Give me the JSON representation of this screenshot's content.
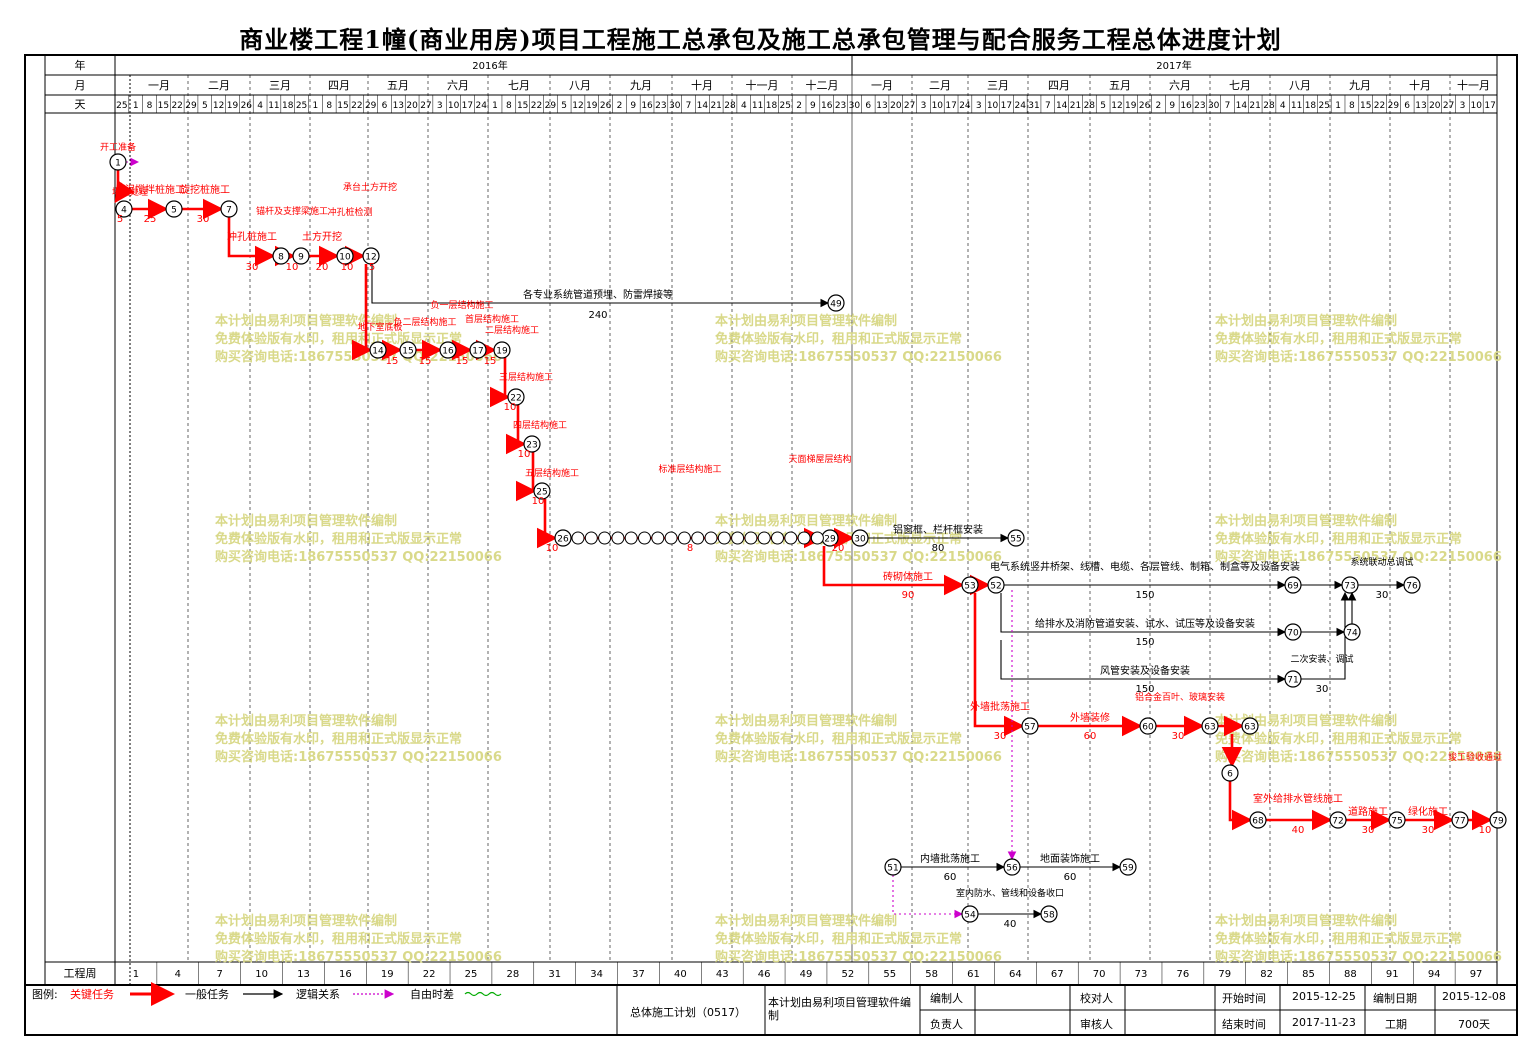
{
  "title": "商业楼工程1幢(商业用房)项目工程施工总承包及施工总承包管理与配合服务工程总体进度计划",
  "header": {
    "row_labels": {
      "year": "年",
      "month": "月",
      "day": "天"
    },
    "years": [
      {
        "label": "2016年"
      },
      {
        "label": "2017年"
      }
    ],
    "months": [
      "一月",
      "二月",
      "三月",
      "四月",
      "五月",
      "六月",
      "七月",
      "八月",
      "九月",
      "十月",
      "十一月",
      "十二月",
      "一月",
      "二月",
      "三月",
      "四月",
      "五月",
      "六月",
      "七月",
      "八月",
      "九月",
      "十月",
      "十一月"
    ],
    "day_ticks": [
      "25",
      "1",
      "8",
      "15",
      "22",
      "29",
      "5",
      "12",
      "19",
      "26",
      "4",
      "11",
      "18",
      "25",
      "1",
      "8",
      "15",
      "22",
      "29",
      "6",
      "13",
      "20",
      "27",
      "3",
      "10",
      "17",
      "24",
      "1",
      "8",
      "15",
      "22",
      "29",
      "5",
      "12",
      "19",
      "26",
      "2",
      "9",
      "16",
      "23",
      "30",
      "7",
      "14",
      "21",
      "28",
      "4",
      "11",
      "18",
      "25",
      "2",
      "9",
      "16",
      "23",
      "30",
      "6",
      "13",
      "20",
      "27",
      "3",
      "10",
      "17",
      "24",
      "3",
      "10",
      "17",
      "24",
      "31",
      "7",
      "14",
      "21",
      "28",
      "5",
      "12",
      "19",
      "26",
      "2",
      "9",
      "16",
      "23",
      "30",
      "7",
      "14",
      "21",
      "28",
      "4",
      "11",
      "18",
      "25",
      "1",
      "8",
      "15",
      "22",
      "29",
      "6",
      "13",
      "20",
      "27",
      "3",
      "10",
      "17"
    ]
  },
  "weeks": {
    "label": "工程周",
    "values": [
      "1",
      "4",
      "7",
      "10",
      "13",
      "16",
      "19",
      "22",
      "25",
      "28",
      "31",
      "34",
      "37",
      "40",
      "43",
      "46",
      "49",
      "52",
      "55",
      "58",
      "61",
      "64",
      "67",
      "70",
      "73",
      "76",
      "79",
      "82",
      "85",
      "88",
      "91",
      "94",
      "97"
    ]
  },
  "watermark": [
    "本计划由易利项目管理软件编制",
    "免费体验版有水印，租用和正式版显示正常",
    "购买咨询电话:18675550537 QQ:22150066"
  ],
  "tasks": [
    {
      "label": "开工准备",
      "dur": ""
    },
    {
      "label": "地基处理",
      "dur": "5"
    },
    {
      "label": "水泥搅拌桩施工",
      "dur": "25"
    },
    {
      "label": "旋挖桩施工",
      "dur": "30"
    },
    {
      "label": "冲孔桩施工",
      "dur": "30"
    },
    {
      "label": "锚杆及支撑梁施工",
      "dur": "10"
    },
    {
      "label": "土方开挖",
      "dur": "20"
    },
    {
      "label": "冲孔桩检测",
      "dur": "10"
    },
    {
      "label": "承台土方开挖",
      "dur": "5"
    },
    {
      "label": "各专业系统管道预埋、防雷焊接等",
      "dur": "240"
    },
    {
      "label": "地下室底板",
      "dur": "15"
    },
    {
      "label": "负二层结构施工",
      "dur": "15"
    },
    {
      "label": "负一层结构施工",
      "dur": "15"
    },
    {
      "label": "首层结构施工",
      "dur": "15"
    },
    {
      "label": "二层结构施工",
      "dur": "10"
    },
    {
      "label": "三层结构施工",
      "dur": "10"
    },
    {
      "label": "四层结构施工",
      "dur": "10"
    },
    {
      "label": "五层结构施工",
      "dur": "10"
    },
    {
      "label": "标准层结构施工",
      "dur": "8"
    },
    {
      "label": "天面梯屋层结构",
      "dur": "20"
    },
    {
      "label": "铝窗框、栏杆框安装",
      "dur": "80"
    },
    {
      "label": "电气系统竖井桥架、线槽、电缆、各层管线、制箱、制盒等及设备安装",
      "dur": "150"
    },
    {
      "label": "给排水及消防管道安装、试水、试压等及设备安装",
      "dur": "150"
    },
    {
      "label": "风管安装及设备安装",
      "dur": "150"
    },
    {
      "label": "砖砌体施工",
      "dur": "90"
    },
    {
      "label": "外墙批荡施工",
      "dur": "30"
    },
    {
      "label": "外墙装修",
      "dur": "60"
    },
    {
      "label": "铝合金百叶、玻璃安装",
      "dur": "30"
    },
    {
      "label": "二次安装、调试",
      "dur": "30"
    },
    {
      "label": "系统联动总调试",
      "dur": "30"
    },
    {
      "label": "室外给排水管线施工",
      "dur": "40"
    },
    {
      "label": "道路施工",
      "dur": "30"
    },
    {
      "label": "绿化施工",
      "dur": "30"
    },
    {
      "label": "竣工验收通过",
      "dur": "10"
    },
    {
      "label": "内墙批荡施工",
      "dur": "60"
    },
    {
      "label": "地面装饰施工",
      "dur": "60"
    },
    {
      "label": "室内防水、管线和设备收口",
      "dur": "40"
    }
  ],
  "legend": {
    "title": "图例:",
    "items": [
      {
        "label": "关键任务",
        "color": "#ff0000"
      },
      {
        "label": "一般任务",
        "color": "#000000"
      },
      {
        "label": "逻辑关系",
        "color": "#cc00cc"
      },
      {
        "label": "自由时差",
        "color": "#00aa00"
      }
    ]
  },
  "footer": {
    "plan_name": "总体施工计划（0517）",
    "software_note": "本计划由易利项目管理软件编制",
    "editor_label": "编制人",
    "leader_label": "负责人",
    "checker_label": "校对人",
    "reviewer_label": "审核人",
    "start_label": "开始时间",
    "start_value": "2015-12-25",
    "end_label": "结束时间",
    "end_value": "2017-11-23",
    "compile_label": "编制日期",
    "compile_value": "2015-12-08",
    "period_label": "工期",
    "period_value": "700天"
  },
  "colors": {
    "critical": "#ff0000",
    "normal": "#000000",
    "logic": "#cc00cc",
    "watermark": "#d9d98a"
  }
}
